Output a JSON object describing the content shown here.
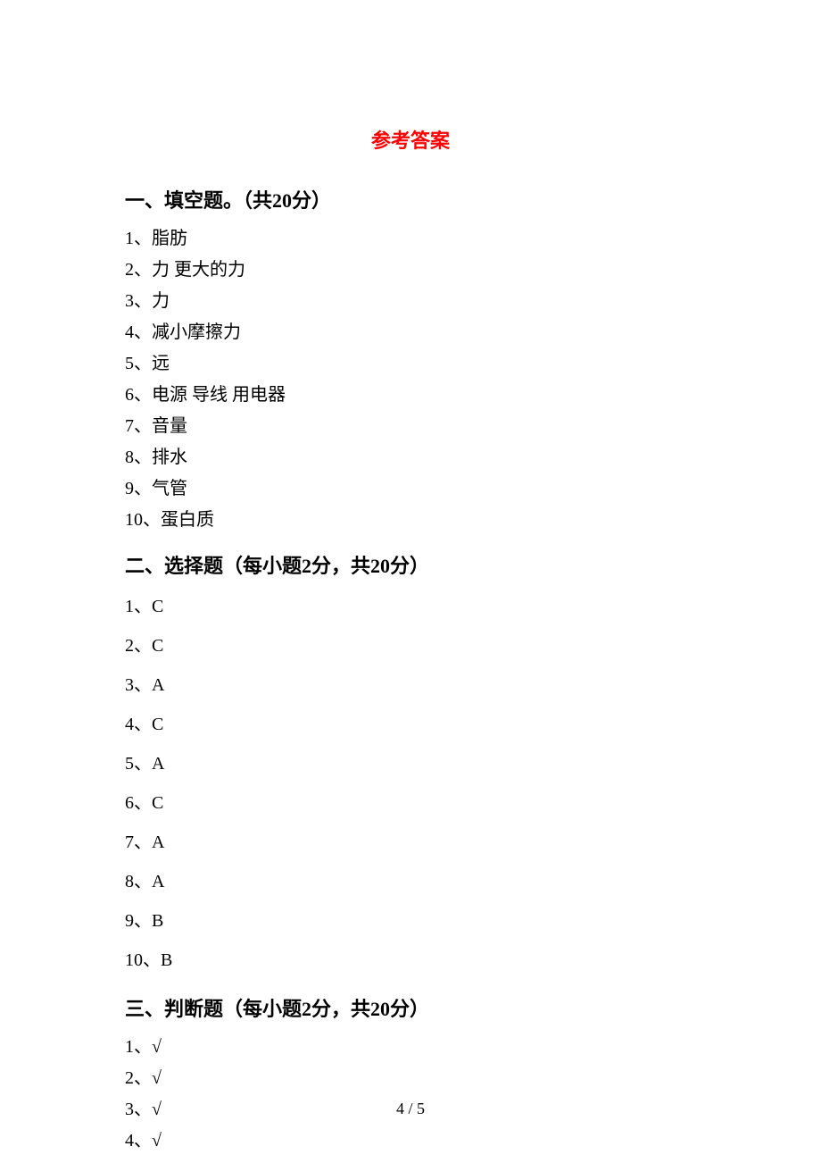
{
  "title": "参考答案",
  "title_color": "#ff0000",
  "title_fontsize": 22,
  "body_fontsize": 20,
  "heading_fontsize": 22,
  "text_color": "#000000",
  "background_color": "#ffffff",
  "section1": {
    "heading": "一、填空题。（共20分）",
    "items": [
      "1、脂肪",
      "2、力     更大的力",
      "3、力",
      "4、减小摩擦力",
      "5、远",
      "6、电源     导线     用电器",
      "7、音量",
      "8、排水",
      "9、气管",
      "10、蛋白质"
    ]
  },
  "section2": {
    "heading": "二、选择题（每小题2分，共20分）",
    "items": [
      "1、C",
      "2、C",
      "3、A",
      "4、C",
      "5、A",
      "6、C",
      "7、A",
      "8、A",
      "9、B",
      "10、B"
    ]
  },
  "section3": {
    "heading": "三、判断题（每小题2分，共20分）",
    "items": [
      "1、√",
      "2、√",
      "3、√",
      "4、√"
    ]
  },
  "page_number": "4 / 5"
}
